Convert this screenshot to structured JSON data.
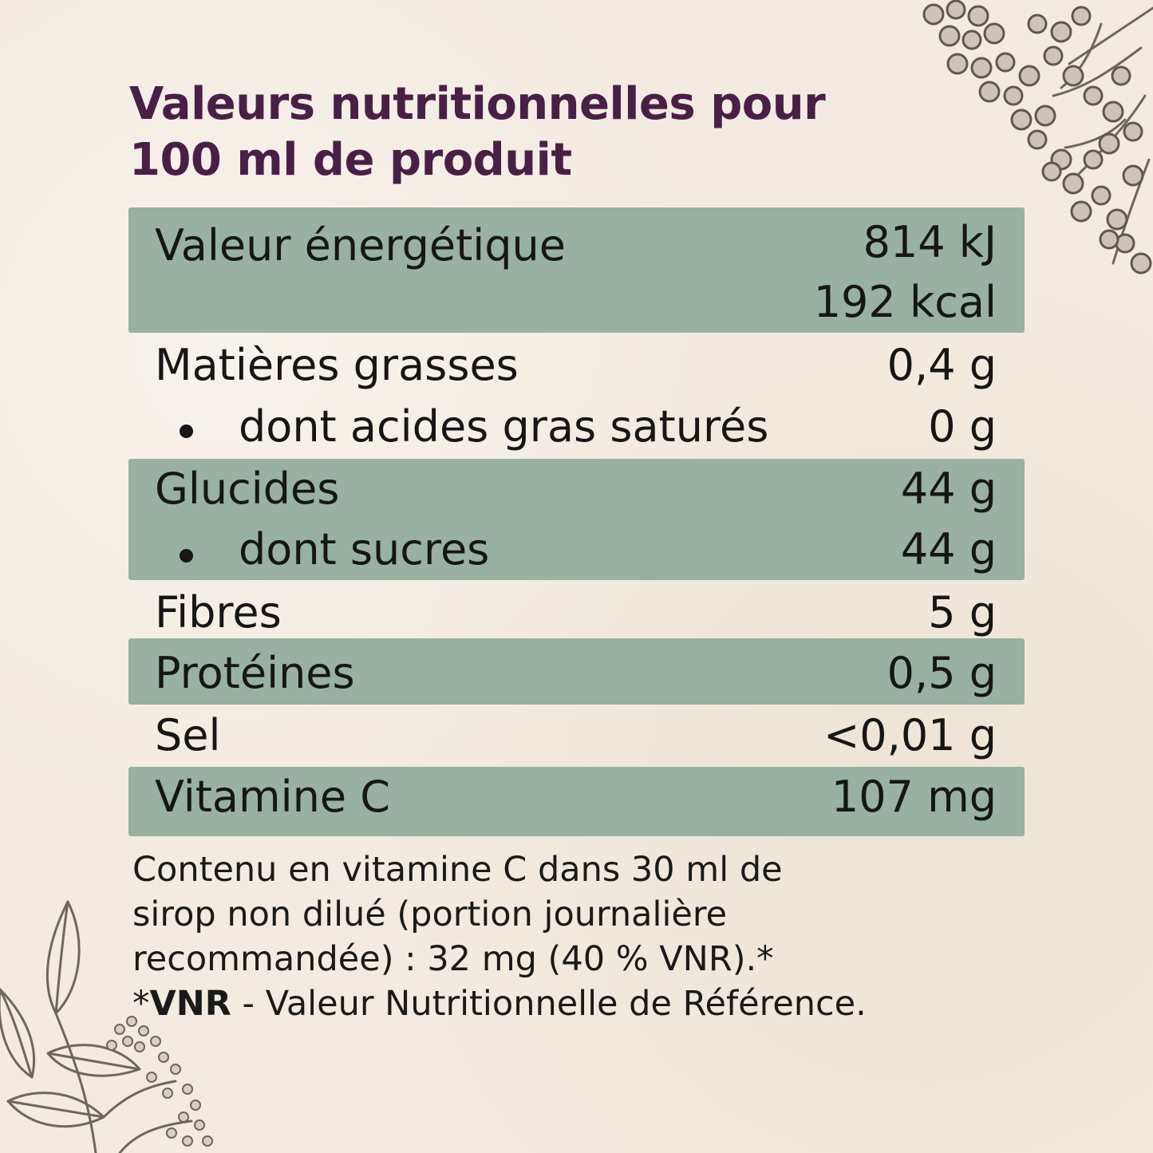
{
  "title": {
    "line1": "Valeurs nutritionnelles pour",
    "line2": "100 ml de produit"
  },
  "rows": [
    {
      "label": "Valeur énergétique",
      "value": "814 kJ",
      "value2": "192 kcal"
    },
    {
      "label": "Matières grasses",
      "value": "0,4 g"
    },
    {
      "label": "dont acides gras saturés",
      "value": "0 g"
    },
    {
      "label": "Glucides",
      "value": "44 g"
    },
    {
      "label": "dont sucres",
      "value": "44 g"
    },
    {
      "label": "Fibres",
      "value": "5 g"
    },
    {
      "label": "Protéines",
      "value": "0,5 g"
    },
    {
      "label": "Sel",
      "value": "<0,01 g"
    },
    {
      "label": "Vitamine C",
      "value": "107 mg"
    }
  ],
  "note": {
    "line1": "Contenu en vitamine C dans 30 ml de",
    "line2": "sirop non dilué (portion journalière",
    "line3": "recommandée) : 32 mg (40 % VNR).*",
    "abbr_prefix": "*",
    "abbr": "VNR",
    "abbr_text": " - Valeur Nutritionnelle de Référence."
  },
  "colors": {
    "background": "#f3ebe1",
    "title": "#4a1f47",
    "row_shade": "#98b1a2",
    "text": "#161616",
    "illustration": "#6e665f"
  },
  "decorations": [
    "elderberry-cluster-illustration",
    "elderflower-leaves-illustration"
  ]
}
